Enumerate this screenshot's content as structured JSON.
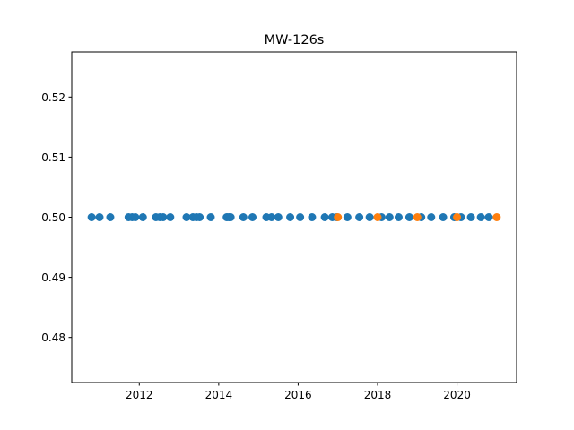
{
  "chart_data": {
    "type": "scatter",
    "title": "MW-126s",
    "xlabel": "",
    "ylabel": "",
    "xlim": [
      2010.3,
      2021.5
    ],
    "ylim": [
      0.4725,
      0.5275
    ],
    "x_ticks": [
      "2012",
      "2014",
      "2016",
      "2018",
      "2020"
    ],
    "y_ticks": [
      "0.48",
      "0.49",
      "0.50",
      "0.51",
      "0.52"
    ],
    "grid": false,
    "series": [
      {
        "color": "#1f77b4",
        "x": [
          2010.8,
          2011.0,
          2011.27,
          2011.73,
          2011.82,
          2011.9,
          2012.09,
          2012.42,
          2012.52,
          2012.6,
          2012.78,
          2013.19,
          2013.35,
          2013.44,
          2013.52,
          2013.8,
          2014.2,
          2014.26,
          2014.3,
          2014.62,
          2014.85,
          2015.2,
          2015.33,
          2015.5,
          2015.8,
          2016.05,
          2016.35,
          2016.67,
          2016.86,
          2016.97,
          2017.24,
          2017.54,
          2017.8,
          2018.1,
          2018.3,
          2018.53,
          2018.8,
          2019.1,
          2019.35,
          2019.65,
          2019.93,
          2020.1,
          2020.35,
          2020.6,
          2020.8
        ],
        "y": [
          0.5,
          0.5,
          0.5,
          0.5,
          0.5,
          0.5,
          0.5,
          0.5,
          0.5,
          0.5,
          0.5,
          0.5,
          0.5,
          0.5,
          0.5,
          0.5,
          0.5,
          0.5,
          0.5,
          0.5,
          0.5,
          0.5,
          0.5,
          0.5,
          0.5,
          0.5,
          0.5,
          0.5,
          0.5,
          0.5,
          0.5,
          0.5,
          0.5,
          0.5,
          0.5,
          0.5,
          0.5,
          0.5,
          0.5,
          0.5,
          0.5,
          0.5,
          0.5,
          0.5,
          0.5
        ]
      },
      {
        "color": "#ff7f0e",
        "x": [
          2017.0,
          2018.0,
          2019.0,
          2020.0,
          2021.0
        ],
        "y": [
          0.5,
          0.5,
          0.5,
          0.5,
          0.5
        ]
      }
    ]
  }
}
